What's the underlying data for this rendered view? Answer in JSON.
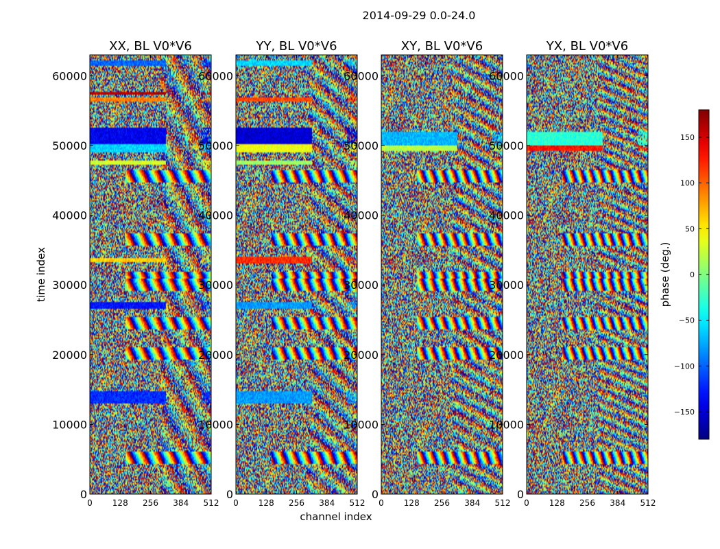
{
  "figure": {
    "title": "2014-09-29 0.0-24.0"
  },
  "chart_data": {
    "type": "heatmap",
    "title": "2014-09-29 0.0-24.0",
    "xlabel": "channel index",
    "ylabel": "time index",
    "xlim": [
      0,
      512
    ],
    "ylim": [
      0,
      63000
    ],
    "x_ticks": [
      0,
      128,
      256,
      384,
      512
    ],
    "x_tick_labels": [
      "0",
      "128",
      "256",
      "384",
      "512"
    ],
    "y_ticks": [
      0,
      10000,
      20000,
      30000,
      40000,
      50000,
      60000
    ],
    "y_tick_labels": [
      "0",
      "10000",
      "20000",
      "30000",
      "40000",
      "50000",
      "60000"
    ],
    "panels": [
      {
        "title": "XX, BL V0*V6",
        "bands": [
          {
            "y0": 12900,
            "y1": 14700,
            "x0": 0,
            "x1": 320,
            "phase": -120
          },
          {
            "y0": 26500,
            "y1": 27500,
            "x0": 0,
            "x1": 320,
            "phase": -130
          },
          {
            "y0": 33200,
            "y1": 33800,
            "x0": 0,
            "x1": 320,
            "phase": 60
          },
          {
            "y0": 49000,
            "y1": 50200,
            "x0": 0,
            "x1": 320,
            "phase": -60
          },
          {
            "y0": 50300,
            "y1": 52500,
            "x0": 0,
            "x1": 320,
            "phase": -140
          },
          {
            "y0": 47200,
            "y1": 47800,
            "x0": 0,
            "x1": 320,
            "phase": 30
          },
          {
            "y0": 56300,
            "y1": 56800,
            "x0": 0,
            "x1": 320,
            "phase": 90
          },
          {
            "y0": 57300,
            "y1": 57700,
            "x0": 0,
            "x1": 320,
            "phase": 160
          },
          {
            "y0": 61500,
            "y1": 62200,
            "x0": 0,
            "x1": 320,
            "phase": -100
          }
        ]
      },
      {
        "title": "YY, BL V0*V6",
        "bands": [
          {
            "y0": 13000,
            "y1": 14700,
            "x0": 0,
            "x1": 320,
            "phase": -80
          },
          {
            "y0": 26500,
            "y1": 27500,
            "x0": 0,
            "x1": 320,
            "phase": -80
          },
          {
            "y0": 33000,
            "y1": 34000,
            "x0": 0,
            "x1": 320,
            "phase": 120
          },
          {
            "y0": 49000,
            "y1": 50200,
            "x0": 0,
            "x1": 320,
            "phase": 40
          },
          {
            "y0": 50300,
            "y1": 52500,
            "x0": 0,
            "x1": 320,
            "phase": -150
          },
          {
            "y0": 47200,
            "y1": 47800,
            "x0": 0,
            "x1": 320,
            "phase": 10
          },
          {
            "y0": 56300,
            "y1": 56800,
            "x0": 0,
            "x1": 320,
            "phase": 110
          },
          {
            "y0": 61500,
            "y1": 62200,
            "x0": 0,
            "x1": 320,
            "phase": -60
          }
        ]
      },
      {
        "title": "XY, BL V0*V6",
        "bands": [
          {
            "y0": 50000,
            "y1": 52000,
            "x0": 0,
            "x1": 320,
            "phase": -70
          },
          {
            "y0": 49200,
            "y1": 50000,
            "x0": 0,
            "x1": 320,
            "phase": 20
          }
        ]
      },
      {
        "title": "YX, BL V0*V6",
        "bands": [
          {
            "y0": 50000,
            "y1": 52000,
            "x0": 0,
            "x1": 320,
            "phase": -30
          },
          {
            "y0": 49200,
            "y1": 50100,
            "x0": 0,
            "x1": 320,
            "phase": 130
          }
        ]
      }
    ],
    "colorbar": {
      "label": "phase (deg.)",
      "range": [
        -180,
        180
      ],
      "ticks": [
        -150,
        -100,
        -50,
        0,
        50,
        100,
        150
      ],
      "tick_labels": [
        "−150",
        "−100",
        "−50",
        "0",
        "50",
        "100",
        "150"
      ],
      "colormap": "jet"
    }
  }
}
